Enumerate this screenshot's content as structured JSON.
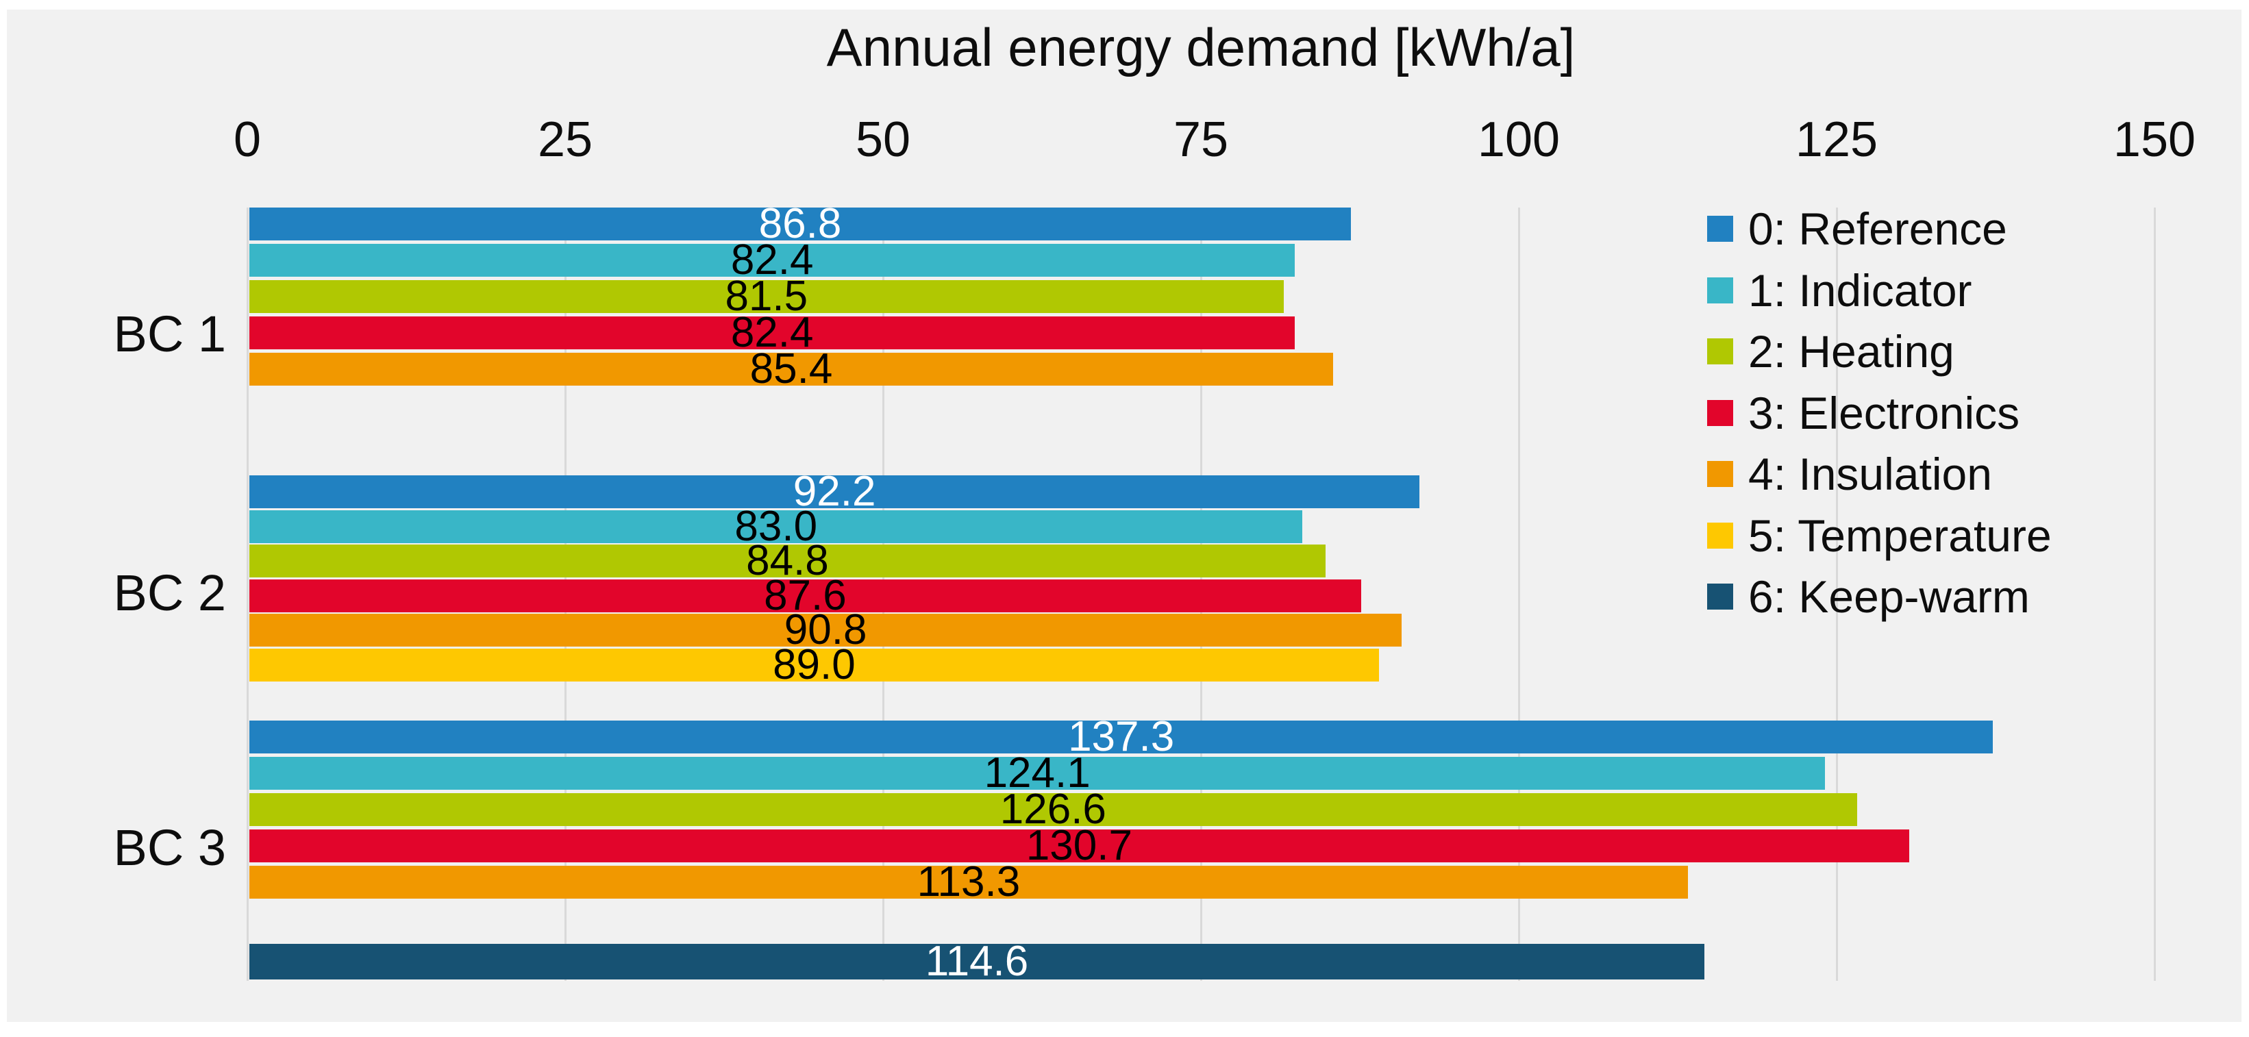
{
  "chart_data": {
    "type": "bar",
    "orientation": "horizontal",
    "title": "Annual energy demand [kWh/a]",
    "xlabel": "",
    "ylabel": "",
    "xlim": [
      0,
      150
    ],
    "x_ticks": [
      0,
      25,
      50,
      75,
      100,
      125,
      150
    ],
    "grid": true,
    "legend_position": "right",
    "background_color": "#f1f1f1",
    "gridline_color": "#d9d9d9",
    "categories": [
      "BC 1",
      "BC 2",
      "BC 3"
    ],
    "series": [
      {
        "name": "0: Reference",
        "color": "#2181c1",
        "label_color": "#ffffff",
        "values": [
          86.8,
          92.2,
          137.3
        ],
        "labels": [
          "86.8",
          "92.2",
          "137.3"
        ]
      },
      {
        "name": "1: Indicator",
        "color": "#39b6c7",
        "label_color": "#000000",
        "values": [
          82.4,
          83.0,
          124.1
        ],
        "labels": [
          "82.4",
          "83.0",
          "124.1"
        ]
      },
      {
        "name": "2: Heating",
        "color": "#b0c802",
        "label_color": "#000000",
        "values": [
          81.5,
          84.8,
          126.6
        ],
        "labels": [
          "81.5",
          "84.8",
          "126.6"
        ]
      },
      {
        "name": "3: Electronics",
        "color": "#e2052b",
        "label_color": "#000000",
        "values": [
          82.4,
          87.6,
          130.7
        ],
        "labels": [
          "82.4",
          "87.6",
          "130.7"
        ]
      },
      {
        "name": "4: Insulation",
        "color": "#f19800",
        "label_color": "#000000",
        "values": [
          85.4,
          90.8,
          113.3
        ],
        "labels": [
          "85.4",
          "90.8",
          "113.3"
        ]
      },
      {
        "name": "5: Temperature",
        "color": "#fec801",
        "label_color": "#000000",
        "values": [
          null,
          89.0,
          null
        ],
        "labels": [
          null,
          "89.0",
          null
        ]
      },
      {
        "name": "6: Keep-warm",
        "color": "#175273",
        "label_color": "#ffffff",
        "values": [
          null,
          null,
          114.6
        ],
        "labels": [
          null,
          null,
          "114.6"
        ],
        "detached": true
      }
    ]
  }
}
